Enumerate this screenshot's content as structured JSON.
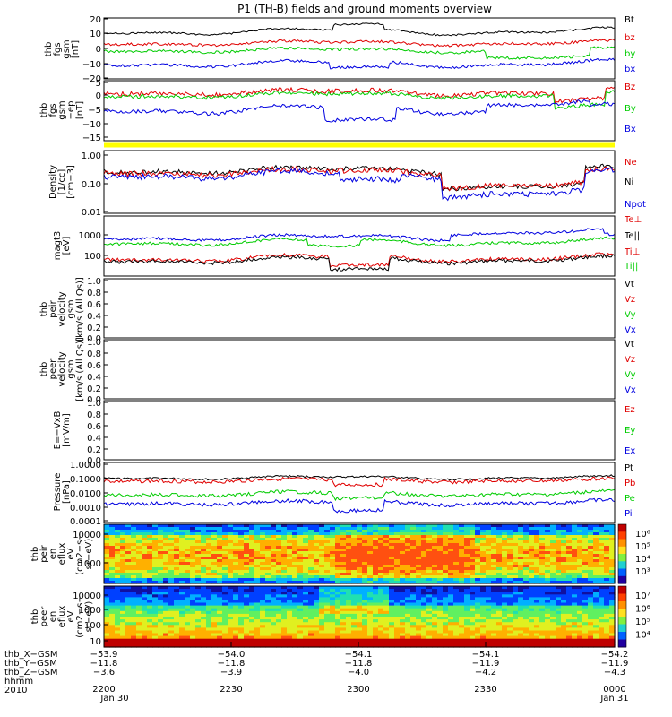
{
  "title": "P1 (TH-B) fields and ground moments overview",
  "time": {
    "start_label_top": "2200",
    "ticks": [
      "2200",
      "2230",
      "2300",
      "2330",
      "0000"
    ],
    "dates": [
      "Jan 30",
      "Jan 31"
    ],
    "year": "2010"
  },
  "colors": {
    "black": "#000000",
    "red": "#e00000",
    "green": "#00cc00",
    "blue": "#0000e0",
    "yellow": "#ffff00"
  },
  "chart_data": [
    {
      "type": "line",
      "ylabel": [
        "thb",
        "fgs",
        "gsm",
        "[nT]"
      ],
      "ylim": [
        -20,
        20
      ],
      "yticks": [
        "20",
        "10",
        "0",
        "−10",
        "−20"
      ],
      "legend": [
        {
          "name": "Bt",
          "color": "black"
        },
        {
          "name": "bz",
          "color": "red"
        },
        {
          "name": "by",
          "color": "green"
        },
        {
          "name": "bx",
          "color": "blue"
        }
      ]
    },
    {
      "type": "line",
      "ylabel": [
        "thb",
        "fgs",
        "gsm",
        "−ep",
        "[nT]"
      ],
      "ylim": [
        -17.5,
        5
      ],
      "yticks": [
        "5",
        "0",
        "−5",
        "−10",
        "−15"
      ],
      "legend": [
        {
          "name": "Bz",
          "color": "red"
        },
        {
          "name": "By",
          "color": "green"
        },
        {
          "name": "Bx",
          "color": "blue"
        }
      ]
    },
    {
      "type": "line",
      "ylabel": [
        "Density",
        "[1/cc]",
        "[cm−3]"
      ],
      "scale": "log",
      "yticks": [
        "1.00",
        "0.10",
        "0.01"
      ],
      "legend": [
        {
          "name": "Ne",
          "color": "red"
        },
        {
          "name": "Ni",
          "color": "black"
        },
        {
          "name": "Npot",
          "color": "blue"
        }
      ]
    },
    {
      "type": "line",
      "ylabel": [
        "magt3",
        "[eV]"
      ],
      "scale": "log",
      "yticks": [
        "1000",
        "100"
      ],
      "legend": [
        {
          "name": "Te⊥",
          "color": "red"
        },
        {
          "name": "Te||",
          "color": "black"
        },
        {
          "name": "Ti⊥",
          "color": "red"
        },
        {
          "name": "Ti||",
          "color": "green"
        }
      ]
    },
    {
      "type": "line",
      "ylabel": [
        "thb",
        "peir",
        "velocity",
        "gsm",
        "[km/s (All Qs)]"
      ],
      "yticks": [
        "1.0",
        "0.8",
        "0.6",
        "0.4",
        "0.2",
        "0.0"
      ],
      "legend": [
        {
          "name": "Vt",
          "color": "black"
        },
        {
          "name": "Vz",
          "color": "red"
        },
        {
          "name": "Vy",
          "color": "green"
        },
        {
          "name": "Vx",
          "color": "blue"
        }
      ]
    },
    {
      "type": "line",
      "ylabel": [
        "thb",
        "peer",
        "velocity",
        "gsm",
        "[km/s (All Qs)]"
      ],
      "yticks": [
        "1.0",
        "0.8",
        "0.6",
        "0.4",
        "0.2",
        "0.0"
      ],
      "legend": [
        {
          "name": "Vt",
          "color": "black"
        },
        {
          "name": "Vz",
          "color": "red"
        },
        {
          "name": "Vy",
          "color": "green"
        },
        {
          "name": "Vx",
          "color": "blue"
        }
      ]
    },
    {
      "type": "line",
      "ylabel": [
        "E=−VxB",
        "[mV/m]"
      ],
      "yticks": [
        "1.0",
        "0.8",
        "0.6",
        "0.4",
        "0.2",
        "0.0"
      ],
      "legend": [
        {
          "name": "Ez",
          "color": "red"
        },
        {
          "name": "Ey",
          "color": "green"
        },
        {
          "name": "Ex",
          "color": "blue"
        }
      ]
    },
    {
      "type": "line",
      "ylabel": [
        "Pressure",
        "[nPa]"
      ],
      "scale": "log",
      "yticks": [
        "1.0000",
        "0.1000",
        "0.0100",
        "0.0010",
        "0.0001"
      ],
      "legend": [
        {
          "name": "Pt",
          "color": "black"
        },
        {
          "name": "Pb",
          "color": "red"
        },
        {
          "name": "Pe",
          "color": "green"
        },
        {
          "name": "Pi",
          "color": "blue"
        }
      ]
    },
    {
      "type": "heatmap",
      "ylabel": [
        "thb",
        "peir",
        "en",
        "eflux",
        "eV",
        "(cm2−s−",
        "sr−eV)"
      ],
      "yticks": [
        "10000",
        "1000"
      ],
      "colorbar_ticks": [
        "10⁶",
        "10⁵",
        "10⁴",
        "10³"
      ]
    },
    {
      "type": "heatmap",
      "ylabel": [
        "thb",
        "peer",
        "en",
        "eflux",
        "eV",
        "(cm2−s−",
        "sr−eV)"
      ],
      "yticks": [
        "10000",
        "1000",
        "100",
        "10"
      ],
      "colorbar_ticks": [
        "10⁷",
        "10⁶",
        "10⁵",
        "10⁴"
      ]
    }
  ],
  "orbit": {
    "labels": [
      "thb_X−GSM",
      "thb_Y−GSM",
      "thb_Z−GSM",
      "hhmm",
      "2010"
    ],
    "rows": [
      [
        "−53.9",
        "−54.0",
        "−54.1",
        "−54.1",
        "−54.2"
      ],
      [
        "−11.8",
        "−11.8",
        "−11.8",
        "−11.9",
        "−11.9"
      ],
      [
        "−3.6",
        "−3.9",
        "−4.0",
        "−4.2",
        "−4.3"
      ]
    ]
  }
}
